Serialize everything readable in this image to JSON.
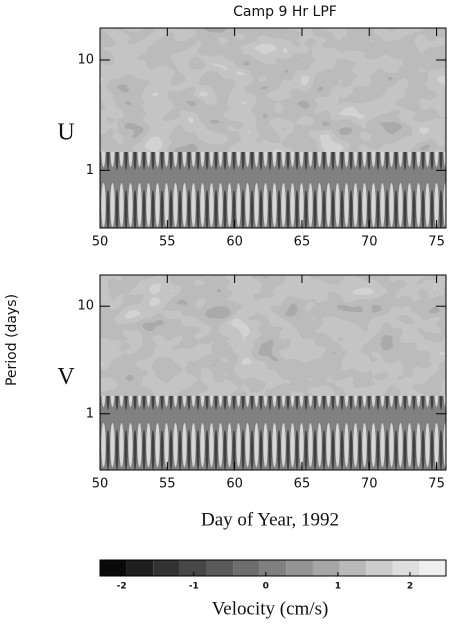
{
  "chart_data": {
    "type": "heatmap",
    "title": "Camp 9 Hr LPF",
    "xlabel": "Day of Year, 1992",
    "ylabel": "Period (days)",
    "panels": [
      {
        "label": "U"
      },
      {
        "label": "V"
      }
    ],
    "xlim": [
      50,
      75.7
    ],
    "xticks": [
      50,
      55,
      60,
      65,
      70,
      75
    ],
    "ylim": [
      0.3,
      19.5
    ],
    "yticks": [
      1,
      10
    ],
    "yscale": "log",
    "colorbar": {
      "label": "Velocity (cm/s)",
      "lim": [
        -2.3,
        2.5
      ],
      "ticks": [
        -2,
        -1,
        0,
        1,
        2
      ],
      "colors": [
        "#0a0a0a",
        "#1f1f1f",
        "#333333",
        "#474747",
        "#5a5a5a",
        "#6d6d6d",
        "#808080",
        "#939393",
        "#a6a6a6",
        "#b9b9b9",
        "#cccccc",
        "#dedede",
        "#efefef"
      ]
    }
  }
}
